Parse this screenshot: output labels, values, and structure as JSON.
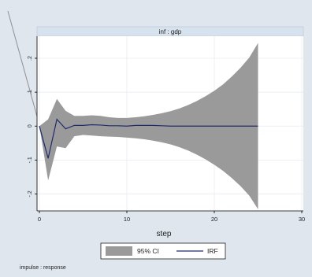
{
  "chart_data": {
    "type": "area",
    "panel_title": "inf : gdp",
    "xlabel": "step",
    "ylabel": "",
    "xlim": [
      0,
      30
    ],
    "ylim": [
      -0.25,
      0.265
    ],
    "x_ticks": [
      0,
      10,
      20,
      30
    ],
    "y_ticks": [
      -0.2,
      -0.1,
      0,
      0.1,
      0.2
    ],
    "y_tick_labels": [
      "-.2",
      "-.1",
      "0",
      ".1",
      ".2"
    ],
    "grid": true,
    "legend_placement": "bottom",
    "note": "impulse : response",
    "series": [
      {
        "name": "95% CI",
        "kind": "band",
        "color": "#9a9a9a",
        "x": [
          0,
          1,
          2,
          3,
          4,
          5,
          6,
          7,
          8,
          9,
          10,
          11,
          12,
          13,
          14,
          15,
          16,
          17,
          18,
          19,
          20,
          21,
          22,
          23,
          24,
          25
        ],
        "lower": [
          0,
          -0.16,
          -0.06,
          -0.065,
          -0.03,
          -0.026,
          -0.028,
          -0.03,
          -0.031,
          -0.032,
          -0.034,
          -0.036,
          -0.039,
          -0.043,
          -0.048,
          -0.054,
          -0.062,
          -0.072,
          -0.084,
          -0.098,
          -0.114,
          -0.132,
          -0.153,
          -0.177,
          -0.205,
          -0.245
        ],
        "upper": [
          0,
          0.02,
          0.08,
          0.045,
          0.03,
          0.03,
          0.032,
          0.03,
          0.026,
          0.024,
          0.024,
          0.026,
          0.029,
          0.033,
          0.038,
          0.044,
          0.052,
          0.062,
          0.074,
          0.088,
          0.104,
          0.123,
          0.146,
          0.172,
          0.202,
          0.245
        ]
      },
      {
        "name": "IRF",
        "kind": "line",
        "color": "#1f2a6e",
        "x": [
          0,
          1,
          2,
          3,
          4,
          5,
          6,
          7,
          8,
          9,
          10,
          11,
          12,
          13,
          14,
          15,
          16,
          17,
          18,
          19,
          20,
          21,
          22,
          23,
          24,
          25
        ],
        "values": [
          0,
          -0.095,
          0.02,
          -0.008,
          0.002,
          0.002,
          0.004,
          0.003,
          0.001,
          0.001,
          0.0,
          0.002,
          0.002,
          0.002,
          0.001,
          0.0,
          0.0,
          0.0,
          0.0,
          0.0,
          0.0,
          0.0,
          0.0,
          0.0,
          0.0,
          0.0
        ]
      }
    ],
    "legend": [
      {
        "label": "95% CI",
        "swatch": "#9a9a9a"
      },
      {
        "label": "IRF",
        "swatch": "#1f2a6e"
      }
    ]
  },
  "colors": {
    "background": "#dfe6ee",
    "plot_background": "#ffffff",
    "header_background": "#d6e2ee",
    "grid": "#e6ebf1",
    "axis": "#000000"
  }
}
